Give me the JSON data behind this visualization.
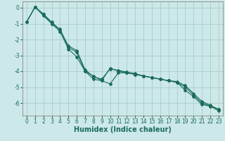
{
  "xlabel": "Humidex (Indice chaleur)",
  "bg_color": "#cce8e8",
  "grid_color": "#aacccc",
  "line_color": "#1a6b5a",
  "spine_color": "#888888",
  "tick_color": "#1a6b5a",
  "xlim": [
    -0.5,
    23.5
  ],
  "ylim": [
    -6.8,
    0.4
  ],
  "xticks": [
    0,
    1,
    2,
    3,
    4,
    5,
    6,
    7,
    8,
    9,
    10,
    11,
    12,
    13,
    14,
    15,
    16,
    17,
    18,
    19,
    20,
    21,
    22,
    23
  ],
  "yticks": [
    0,
    -1,
    -2,
    -3,
    -4,
    -5,
    -6
  ],
  "line1_x": [
    0,
    1,
    2,
    3,
    4,
    5,
    6,
    7,
    8,
    9,
    10,
    11,
    12,
    13,
    14,
    15,
    16,
    17,
    18,
    19,
    20,
    21,
    22,
    23
  ],
  "line1_y": [
    -0.9,
    0.05,
    -0.4,
    -1.0,
    -1.35,
    -2.5,
    -2.8,
    -4.0,
    -4.3,
    -4.6,
    -3.8,
    -4.0,
    -4.1,
    -4.2,
    -4.3,
    -4.4,
    -4.5,
    -4.6,
    -4.7,
    -5.2,
    -5.6,
    -6.1,
    -6.2,
    -6.4
  ],
  "line2_x": [
    0,
    1,
    2,
    3,
    4,
    5,
    6,
    7,
    8,
    9,
    10,
    11,
    12,
    13,
    14,
    15,
    16,
    17,
    18,
    19,
    20,
    21,
    22,
    23
  ],
  "line2_y": [
    -0.9,
    0.05,
    -0.5,
    -1.0,
    -1.5,
    -2.6,
    -3.1,
    -4.0,
    -4.5,
    -4.6,
    -4.8,
    -4.1,
    -4.1,
    -4.2,
    -4.3,
    -4.4,
    -4.5,
    -4.6,
    -4.7,
    -5.0,
    -5.5,
    -6.0,
    -6.2,
    -6.5
  ],
  "line3_x": [
    0,
    1,
    2,
    3,
    4,
    5,
    6,
    7,
    8,
    9,
    10,
    11,
    12,
    13,
    14,
    15,
    16,
    17,
    18,
    19,
    20,
    21,
    22,
    23
  ],
  "line3_y": [
    -0.9,
    0.05,
    -0.4,
    -0.9,
    -1.4,
    -2.4,
    -2.7,
    -3.9,
    -4.35,
    -4.5,
    -3.85,
    -3.95,
    -4.05,
    -4.15,
    -4.3,
    -4.4,
    -4.5,
    -4.6,
    -4.65,
    -4.9,
    -5.4,
    -5.9,
    -6.15,
    -6.4
  ],
  "markersize": 2.0,
  "linewidth": 0.8,
  "tick_labelsize": 5.5,
  "xlabel_fontsize": 7.0
}
